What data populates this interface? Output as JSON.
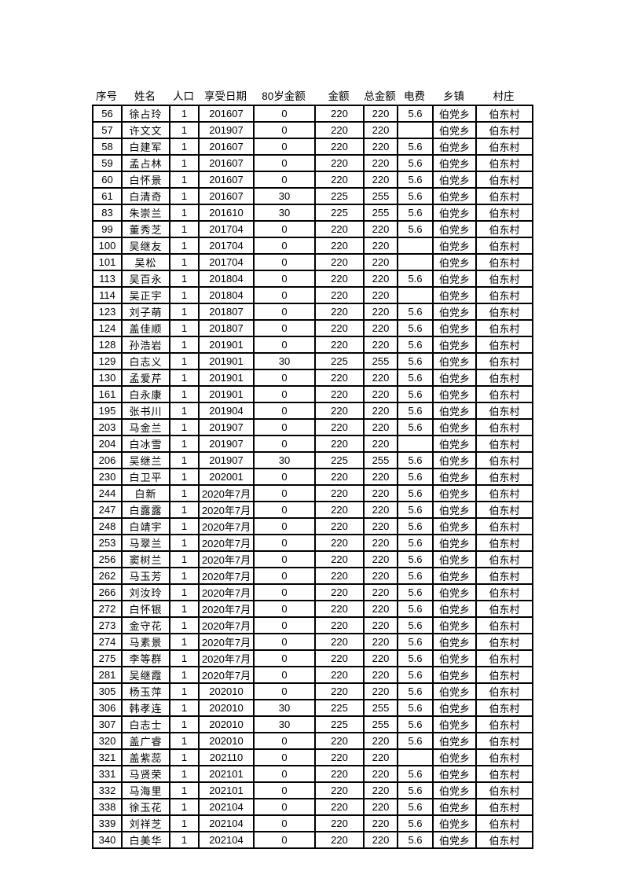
{
  "colors": {
    "page_background": "#ffffff",
    "text": "#000000",
    "grid_border": "#000000"
  },
  "table": {
    "columns": [
      {
        "key": "serial",
        "label": "序号"
      },
      {
        "key": "name",
        "label": "姓名"
      },
      {
        "key": "population",
        "label": "人口"
      },
      {
        "key": "enjoy_date",
        "label": "享受日期"
      },
      {
        "key": "age80_amount",
        "label": "80岁金额"
      },
      {
        "key": "amount",
        "label": "金额"
      },
      {
        "key": "total_amount",
        "label": "总金额"
      },
      {
        "key": "electricity_fee",
        "label": "电费"
      },
      {
        "key": "township",
        "label": "乡镇"
      },
      {
        "key": "village",
        "label": "村庄"
      }
    ],
    "rows": [
      [
        "56",
        "徐占玲",
        "1",
        "201607",
        "0",
        "220",
        "220",
        "5.6",
        "伯党乡",
        "伯东村"
      ],
      [
        "57",
        "许文文",
        "1",
        "201907",
        "0",
        "220",
        "220",
        "",
        "伯党乡",
        "伯东村"
      ],
      [
        "58",
        "白建军",
        "1",
        "201607",
        "0",
        "220",
        "220",
        "5.6",
        "伯党乡",
        "伯东村"
      ],
      [
        "59",
        "孟占林",
        "1",
        "201607",
        "0",
        "220",
        "220",
        "5.6",
        "伯党乡",
        "伯东村"
      ],
      [
        "60",
        "白怀景",
        "1",
        "201607",
        "0",
        "220",
        "220",
        "5.6",
        "伯党乡",
        "伯东村"
      ],
      [
        "61",
        "白清奇",
        "1",
        "201607",
        "30",
        "225",
        "255",
        "5.6",
        "伯党乡",
        "伯东村"
      ],
      [
        "83",
        "朱崇兰",
        "1",
        "201610",
        "30",
        "225",
        "255",
        "5.6",
        "伯党乡",
        "伯东村"
      ],
      [
        "99",
        "董秀芝",
        "1",
        "201704",
        "0",
        "220",
        "220",
        "5.6",
        "伯党乡",
        "伯东村"
      ],
      [
        "100",
        "吴继友",
        "1",
        "201704",
        "0",
        "220",
        "220",
        "",
        "伯党乡",
        "伯东村"
      ],
      [
        "101",
        "吴松",
        "1",
        "201704",
        "0",
        "220",
        "220",
        "",
        "伯党乡",
        "伯东村"
      ],
      [
        "113",
        "吴百永",
        "1",
        "201804",
        "0",
        "220",
        "220",
        "5.6",
        "伯党乡",
        "伯东村"
      ],
      [
        "114",
        "吴正宇",
        "1",
        "201804",
        "0",
        "220",
        "220",
        "",
        "伯党乡",
        "伯东村"
      ],
      [
        "123",
        "刘子萌",
        "1",
        "201807",
        "0",
        "220",
        "220",
        "5.6",
        "伯党乡",
        "伯东村"
      ],
      [
        "124",
        "盖佳顺",
        "1",
        "201807",
        "0",
        "220",
        "220",
        "5.6",
        "伯党乡",
        "伯东村"
      ],
      [
        "128",
        "孙浩岩",
        "1",
        "201901",
        "0",
        "220",
        "220",
        "5.6",
        "伯党乡",
        "伯东村"
      ],
      [
        "129",
        "白志义",
        "1",
        "201901",
        "30",
        "225",
        "255",
        "5.6",
        "伯党乡",
        "伯东村"
      ],
      [
        "130",
        "孟爱芹",
        "1",
        "201901",
        "0",
        "220",
        "220",
        "5.6",
        "伯党乡",
        "伯东村"
      ],
      [
        "161",
        "白永康",
        "1",
        "201901",
        "0",
        "220",
        "220",
        "5.6",
        "伯党乡",
        "伯东村"
      ],
      [
        "195",
        "张书川",
        "1",
        "201904",
        "0",
        "220",
        "220",
        "5.6",
        "伯党乡",
        "伯东村"
      ],
      [
        "203",
        "马金兰",
        "1",
        "201907",
        "0",
        "220",
        "220",
        "5.6",
        "伯党乡",
        "伯东村"
      ],
      [
        "204",
        "白冰雪",
        "1",
        "201907",
        "0",
        "220",
        "220",
        "",
        "伯党乡",
        "伯东村"
      ],
      [
        "206",
        "吴继兰",
        "1",
        "201907",
        "30",
        "225",
        "255",
        "5.6",
        "伯党乡",
        "伯东村"
      ],
      [
        "230",
        "白卫平",
        "1",
        "202001",
        "0",
        "220",
        "220",
        "5.6",
        "伯党乡",
        "伯东村"
      ],
      [
        "244",
        "白新",
        "1",
        "2020年7月",
        "0",
        "220",
        "220",
        "5.6",
        "伯党乡",
        "伯东村"
      ],
      [
        "247",
        "白露露",
        "1",
        "2020年7月",
        "0",
        "220",
        "220",
        "5.6",
        "伯党乡",
        "伯东村"
      ],
      [
        "248",
        "白靖宇",
        "1",
        "2020年7月",
        "0",
        "220",
        "220",
        "5.6",
        "伯党乡",
        "伯东村"
      ],
      [
        "253",
        "马翠兰",
        "1",
        "2020年7月",
        "0",
        "220",
        "220",
        "5.6",
        "伯党乡",
        "伯东村"
      ],
      [
        "256",
        "窦树兰",
        "1",
        "2020年7月",
        "0",
        "220",
        "220",
        "5.6",
        "伯党乡",
        "伯东村"
      ],
      [
        "262",
        "马玉芳",
        "1",
        "2020年7月",
        "0",
        "220",
        "220",
        "5.6",
        "伯党乡",
        "伯东村"
      ],
      [
        "266",
        "刘汝玲",
        "1",
        "2020年7月",
        "0",
        "220",
        "220",
        "5.6",
        "伯党乡",
        "伯东村"
      ],
      [
        "272",
        "白怀银",
        "1",
        "2020年7月",
        "0",
        "220",
        "220",
        "5.6",
        "伯党乡",
        "伯东村"
      ],
      [
        "273",
        "金守花",
        "1",
        "2020年7月",
        "0",
        "220",
        "220",
        "5.6",
        "伯党乡",
        "伯东村"
      ],
      [
        "274",
        "马素景",
        "1",
        "2020年7月",
        "0",
        "220",
        "220",
        "5.6",
        "伯党乡",
        "伯东村"
      ],
      [
        "275",
        "李等群",
        "1",
        "2020年7月",
        "0",
        "220",
        "220",
        "5.6",
        "伯党乡",
        "伯东村"
      ],
      [
        "281",
        "吴继霞",
        "1",
        "2020年7月",
        "0",
        "220",
        "220",
        "5.6",
        "伯党乡",
        "伯东村"
      ],
      [
        "305",
        "杨玉萍",
        "1",
        "202010",
        "0",
        "220",
        "220",
        "5.6",
        "伯党乡",
        "伯东村"
      ],
      [
        "306",
        "韩孝连",
        "1",
        "202010",
        "30",
        "225",
        "255",
        "5.6",
        "伯党乡",
        "伯东村"
      ],
      [
        "307",
        "白志士",
        "1",
        "202010",
        "30",
        "225",
        "255",
        "5.6",
        "伯党乡",
        "伯东村"
      ],
      [
        "320",
        "盖广睿",
        "1",
        "202010",
        "0",
        "220",
        "220",
        "5.6",
        "伯党乡",
        "伯东村"
      ],
      [
        "321",
        "盖紫蕊",
        "1",
        "202110",
        "0",
        "220",
        "220",
        "",
        "伯党乡",
        "伯东村"
      ],
      [
        "331",
        "马贤荣",
        "1",
        "202101",
        "0",
        "220",
        "220",
        "5.6",
        "伯党乡",
        "伯东村"
      ],
      [
        "332",
        "马海里",
        "1",
        "202101",
        "0",
        "220",
        "220",
        "5.6",
        "伯党乡",
        "伯东村"
      ],
      [
        "338",
        "徐玉花",
        "1",
        "202104",
        "0",
        "220",
        "220",
        "5.6",
        "伯党乡",
        "伯东村"
      ],
      [
        "339",
        "刘祥芝",
        "1",
        "202104",
        "0",
        "220",
        "220",
        "5.6",
        "伯党乡",
        "伯东村"
      ],
      [
        "340",
        "白美华",
        "1",
        "202104",
        "0",
        "220",
        "220",
        "5.6",
        "伯党乡",
        "伯东村"
      ]
    ]
  }
}
